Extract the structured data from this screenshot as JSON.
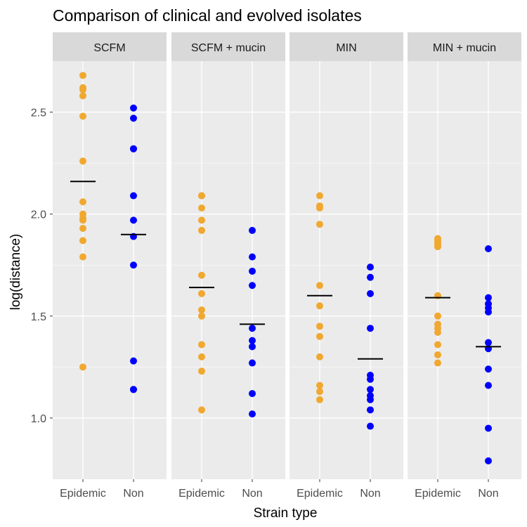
{
  "chart_data": {
    "type": "scatter",
    "title": "Comparison of clinical and evolved isolates",
    "xlabel": "Strain type",
    "ylabel": "log(distance)",
    "ylim": [
      0.7,
      2.75
    ],
    "yticks": [
      1.0,
      1.5,
      2.0,
      2.5
    ],
    "yticklabels": [
      "1.0",
      "1.5",
      "2.0",
      "2.5"
    ],
    "categories": [
      "Epidemic",
      "Non"
    ],
    "grid": true,
    "colors": {
      "Epidemic": "#F0A830",
      "Non": "#0000FF",
      "mean": "#000000",
      "panel_bg": "#EBEBEB",
      "strip_bg": "#D9D9D9",
      "grid": "#FFFFFF"
    },
    "panels": [
      {
        "name": "SCFM",
        "Epidemic": {
          "values": [
            2.68,
            2.62,
            2.61,
            2.58,
            2.48,
            2.26,
            2.06,
            2.0,
            1.98,
            1.97,
            1.93,
            1.87,
            1.79,
            1.25
          ],
          "mean": 2.16
        },
        "Non": {
          "values": [
            2.52,
            2.47,
            2.32,
            2.32,
            2.09,
            1.97,
            1.89,
            1.75,
            1.28,
            1.14,
            1.14
          ],
          "mean": 1.9
        }
      },
      {
        "name": "SCFM + mucin",
        "Epidemic": {
          "values": [
            2.09,
            2.09,
            2.03,
            1.97,
            1.92,
            1.7,
            1.61,
            1.53,
            1.5,
            1.36,
            1.3,
            1.23,
            1.04
          ],
          "mean": 1.64
        },
        "Non": {
          "values": [
            1.92,
            1.79,
            1.72,
            1.65,
            1.44,
            1.38,
            1.35,
            1.27,
            1.12,
            1.02
          ],
          "mean": 1.46
        }
      },
      {
        "name": "MIN",
        "Epidemic": {
          "values": [
            2.09,
            2.04,
            2.03,
            1.95,
            1.65,
            1.55,
            1.45,
            1.4,
            1.3,
            1.16,
            1.13,
            1.09
          ],
          "mean": 1.6
        },
        "Non": {
          "values": [
            1.74,
            1.69,
            1.61,
            1.44,
            1.21,
            1.19,
            1.14,
            1.11,
            1.09,
            1.04,
            0.96
          ],
          "mean": 1.29
        }
      },
      {
        "name": "MIN + mucin",
        "Epidemic": {
          "values": [
            1.88,
            1.87,
            1.86,
            1.85,
            1.84,
            1.6,
            1.5,
            1.46,
            1.44,
            1.42,
            1.36,
            1.31,
            1.27
          ],
          "mean": 1.59
        },
        "Non": {
          "values": [
            1.83,
            1.59,
            1.56,
            1.54,
            1.52,
            1.37,
            1.34,
            1.24,
            1.16,
            0.95,
            0.79
          ],
          "mean": 1.35
        }
      }
    ]
  }
}
